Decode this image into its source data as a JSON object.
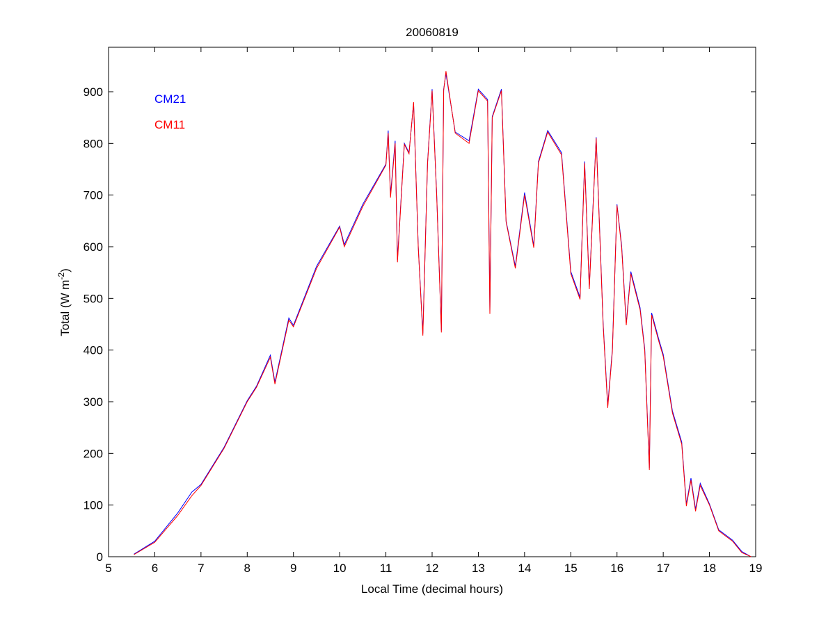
{
  "chart_data": {
    "type": "line",
    "title": "20060819",
    "xlabel": "Local Time (decimal hours)",
    "ylabel_main": "Total (W m",
    "ylabel_sup": "-2",
    "ylabel_close": ")",
    "xlim": [
      5,
      19
    ],
    "ylim": [
      0,
      960
    ],
    "xticks": [
      5,
      6,
      7,
      8,
      9,
      10,
      11,
      12,
      13,
      14,
      15,
      16,
      17,
      18,
      19
    ],
    "yticks": [
      0,
      100,
      200,
      300,
      400,
      500,
      600,
      700,
      800,
      900
    ],
    "grid": false,
    "legend_placement": "top-left",
    "series": [
      {
        "name": "CM21",
        "color": "#0000ff",
        "x": [
          5.55,
          6,
          6.5,
          6.8,
          7,
          7.5,
          8,
          8.2,
          8.5,
          8.6,
          8.9,
          9,
          9.5,
          10,
          10.1,
          10.5,
          11,
          11.05,
          11.1,
          11.2,
          11.25,
          11.4,
          11.5,
          11.6,
          11.7,
          11.8,
          11.9,
          12,
          12.1,
          12.2,
          12.25,
          12.3,
          12.5,
          12.8,
          13,
          13.2,
          13.25,
          13.3,
          13.5,
          13.6,
          13.8,
          14,
          14.2,
          14.3,
          14.5,
          14.8,
          15,
          15.2,
          15.3,
          15.4,
          15.55,
          15.7,
          15.8,
          15.9,
          16,
          16.1,
          16.2,
          16.3,
          16.5,
          16.6,
          16.7,
          16.75,
          16.9,
          17,
          17.2,
          17.4,
          17.5,
          17.6,
          17.7,
          17.8,
          18,
          18.2,
          18.5,
          18.7,
          18.9
        ],
        "y": [
          5,
          30,
          85,
          125,
          140,
          212,
          302,
          330,
          390,
          338,
          462,
          448,
          562,
          640,
          604,
          682,
          760,
          825,
          700,
          805,
          575,
          800,
          782,
          878,
          600,
          432,
          762,
          905,
          700,
          438,
          905,
          935,
          822,
          805,
          905,
          885,
          475,
          852,
          905,
          650,
          562,
          705,
          602,
          765,
          825,
          782,
          552,
          502,
          765,
          522,
          812,
          452,
          292,
          402,
          682,
          602,
          452,
          552,
          482,
          402,
          172,
          472,
          422,
          392,
          282,
          222,
          102,
          152,
          92,
          142,
          102,
          52,
          32,
          10,
          0
        ]
      },
      {
        "name": "CM11",
        "color": "#ff0000",
        "x": [
          5.55,
          6,
          6.5,
          6.8,
          7,
          7.5,
          8,
          8.2,
          8.5,
          8.6,
          8.9,
          9,
          9.5,
          10,
          10.1,
          10.5,
          11,
          11.05,
          11.1,
          11.2,
          11.25,
          11.4,
          11.5,
          11.6,
          11.7,
          11.8,
          11.9,
          12,
          12.1,
          12.2,
          12.25,
          12.3,
          12.5,
          12.8,
          13,
          13.2,
          13.25,
          13.3,
          13.5,
          13.6,
          13.8,
          14,
          14.2,
          14.3,
          14.5,
          14.8,
          15,
          15.2,
          15.3,
          15.4,
          15.55,
          15.7,
          15.8,
          15.9,
          16,
          16.1,
          16.2,
          16.3,
          16.5,
          16.6,
          16.7,
          16.75,
          16.9,
          17,
          17.2,
          17.4,
          17.5,
          17.6,
          17.7,
          17.8,
          18,
          18.2,
          18.5,
          18.7,
          18.9
        ],
        "y": [
          4,
          28,
          80,
          118,
          138,
          210,
          300,
          328,
          386,
          334,
          458,
          445,
          558,
          638,
          600,
          678,
          758,
          820,
          695,
          800,
          570,
          798,
          780,
          880,
          598,
          428,
          760,
          902,
          698,
          434,
          902,
          940,
          820,
          800,
          902,
          882,
          470,
          850,
          902,
          648,
          558,
          700,
          598,
          762,
          822,
          778,
          548,
          498,
          762,
          518,
          810,
          448,
          288,
          398,
          680,
          598,
          448,
          548,
          478,
          398,
          168,
          468,
          418,
          388,
          278,
          218,
          98,
          148,
          88,
          138,
          100,
          50,
          30,
          8,
          0
        ]
      }
    ]
  }
}
